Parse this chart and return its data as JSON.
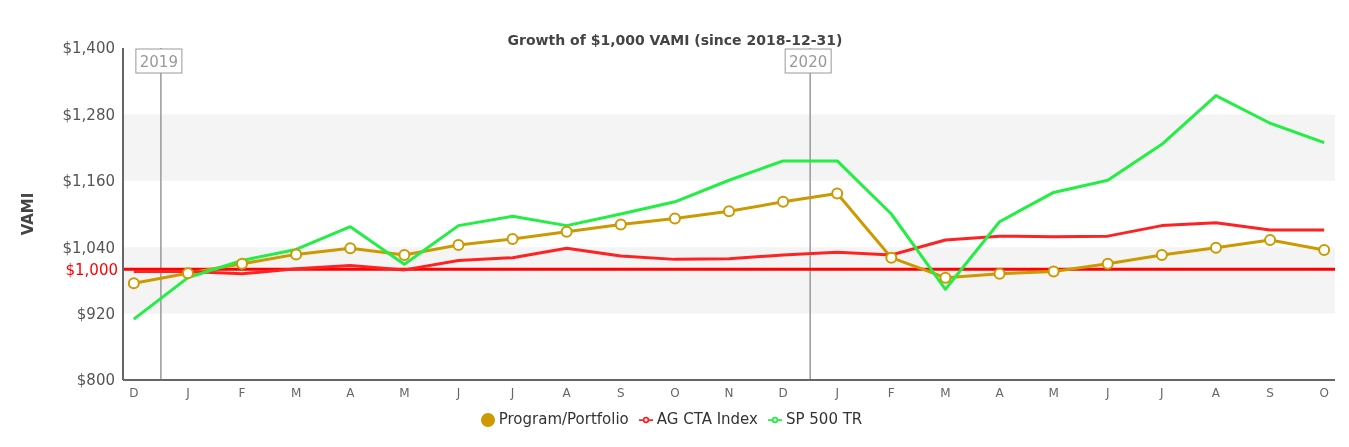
{
  "chart_data": {
    "type": "line",
    "title": "Growth of $1,000 VAMI (since 2018-12-31)",
    "ylabel": "VAMI",
    "categories": [
      "D",
      "J",
      "F",
      "M",
      "A",
      "M",
      "J",
      "J",
      "A",
      "S",
      "O",
      "N",
      "D",
      "J",
      "F",
      "M",
      "A",
      "M",
      "J",
      "J",
      "A",
      "S",
      "O"
    ],
    "series": [
      {
        "name": "Program/Portfolio",
        "color": "#cc9900",
        "marker": "circle",
        "values": [
          975,
          993,
          1010,
          1027,
          1038,
          1026,
          1044,
          1055,
          1068,
          1081,
          1092,
          1105,
          1122,
          1137,
          1021,
          985,
          992,
          996,
          1010,
          1026,
          1039,
          1053,
          1035
        ]
      },
      {
        "name": "AG CTA Index",
        "color": "#ff2222",
        "values": [
          996,
          996,
          992,
          1001,
          1007,
          999,
          1016,
          1021,
          1038,
          1024,
          1018,
          1019,
          1026,
          1031,
          1026,
          1053,
          1060,
          1059,
          1060,
          1079,
          1084,
          1071,
          1071
        ]
      },
      {
        "name": "SP 500 TR",
        "color": "#22ee44",
        "values": [
          910,
          985,
          1016,
          1036,
          1077,
          1009,
          1079,
          1096,
          1079,
          1100,
          1122,
          1161,
          1196,
          1196,
          1100,
          964,
          1086,
          1139,
          1161,
          1226,
          1314,
          1264,
          1229
        ]
      }
    ],
    "ylim": [
      800,
      1400
    ],
    "yticks": [
      {
        "value": 800,
        "label": "$800"
      },
      {
        "value": 920,
        "label": "$920"
      },
      {
        "value": 1040,
        "label": "$1,040"
      },
      {
        "value": 1160,
        "label": "$1,160"
      },
      {
        "value": 1280,
        "label": "$1,280"
      },
      {
        "value": 1400,
        "label": "$1,400"
      }
    ],
    "bands": [
      {
        "axis": "y",
        "from": 920,
        "to": 1040,
        "color": "#f4f4f4"
      },
      {
        "axis": "y",
        "from": 1160,
        "to": 1280,
        "color": "#f4f4f4"
      }
    ],
    "ref_lines": [
      {
        "axis": "y",
        "value": 1000,
        "label": "$1,000",
        "color": "#ff0000"
      }
    ],
    "annotations": [
      "2019",
      "2020"
    ],
    "grid": false,
    "legend": "bottom"
  }
}
